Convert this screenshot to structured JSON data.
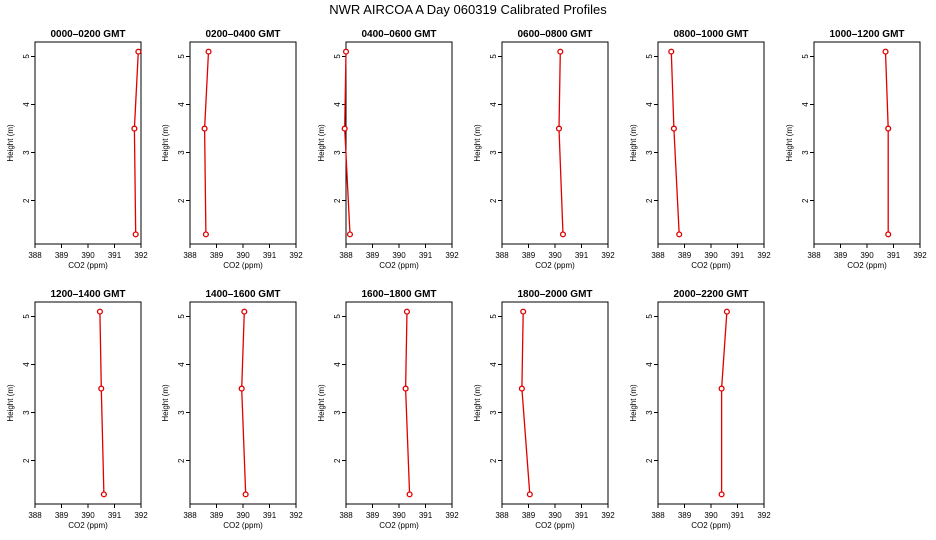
{
  "title": "NWR AIRCOA A  Day 060319  Calibrated Profiles",
  "colors": {
    "line": "#e00000",
    "axis": "#000000"
  },
  "chart_data": [
    {
      "type": "line",
      "title": "0000–0200 GMT",
      "xlabel": "CO2 (ppm)",
      "ylabel": "Height (m)",
      "xlim": [
        388,
        392
      ],
      "ylim": [
        1.1,
        5.3
      ],
      "xticks": [
        "388",
        "389",
        "390",
        "391",
        "392"
      ],
      "yticks": [
        "2",
        "3",
        "4",
        "5"
      ],
      "x": [
        391.8,
        391.75,
        391.9
      ],
      "y": [
        1.3,
        3.5,
        5.1
      ]
    },
    {
      "type": "line",
      "title": "0200–0400 GMT",
      "xlabel": "CO2 (ppm)",
      "ylabel": "Height (m)",
      "xlim": [
        388,
        392
      ],
      "ylim": [
        1.1,
        5.3
      ],
      "xticks": [
        "388",
        "389",
        "390",
        "391",
        "392"
      ],
      "yticks": [
        "2",
        "3",
        "4",
        "5"
      ],
      "x": [
        388.6,
        388.55,
        388.7
      ],
      "y": [
        1.3,
        3.5,
        5.1
      ]
    },
    {
      "type": "line",
      "title": "0400–0600 GMT",
      "xlabel": "CO2 (ppm)",
      "ylabel": "Height (m)",
      "xlim": [
        388,
        392
      ],
      "ylim": [
        1.1,
        5.3
      ],
      "xticks": [
        "388",
        "389",
        "390",
        "391",
        "392"
      ],
      "yticks": [
        "2",
        "3",
        "4",
        "5"
      ],
      "x": [
        388.15,
        387.95,
        388.0
      ],
      "y": [
        1.3,
        3.5,
        5.1
      ]
    },
    {
      "type": "line",
      "title": "0600–0800 GMT",
      "xlabel": "CO2 (ppm)",
      "ylabel": "Height (m)",
      "xlim": [
        388,
        392
      ],
      "ylim": [
        1.1,
        5.3
      ],
      "xticks": [
        "388",
        "389",
        "390",
        "391",
        "392"
      ],
      "yticks": [
        "2",
        "3",
        "4",
        "5"
      ],
      "x": [
        390.3,
        390.15,
        390.2
      ],
      "y": [
        1.3,
        3.5,
        5.1
      ]
    },
    {
      "type": "line",
      "title": "0800–1000 GMT",
      "xlabel": "CO2 (ppm)",
      "ylabel": "Height (m)",
      "xlim": [
        388,
        392
      ],
      "ylim": [
        1.1,
        5.3
      ],
      "xticks": [
        "388",
        "389",
        "390",
        "391",
        "392"
      ],
      "yticks": [
        "2",
        "3",
        "4",
        "5"
      ],
      "x": [
        388.8,
        388.6,
        388.5
      ],
      "y": [
        1.3,
        3.5,
        5.1
      ]
    },
    {
      "type": "line",
      "title": "1000–1200 GMT",
      "xlabel": "CO2 (ppm)",
      "ylabel": "Height (m)",
      "xlim": [
        388,
        392
      ],
      "ylim": [
        1.1,
        5.3
      ],
      "xticks": [
        "388",
        "389",
        "390",
        "391",
        "392"
      ],
      "yticks": [
        "2",
        "3",
        "4",
        "5"
      ],
      "x": [
        390.8,
        390.8,
        390.7
      ],
      "y": [
        1.3,
        3.5,
        5.1
      ]
    },
    {
      "type": "line",
      "title": "1200–1400 GMT",
      "xlabel": "CO2 (ppm)",
      "ylabel": "Height (m)",
      "xlim": [
        388,
        392
      ],
      "ylim": [
        1.1,
        5.3
      ],
      "xticks": [
        "388",
        "389",
        "390",
        "391",
        "392"
      ],
      "yticks": [
        "2",
        "3",
        "4",
        "5"
      ],
      "x": [
        390.6,
        390.5,
        390.45
      ],
      "y": [
        1.3,
        3.5,
        5.1
      ]
    },
    {
      "type": "line",
      "title": "1400–1600 GMT",
      "xlabel": "CO2 (ppm)",
      "ylabel": "Height (m)",
      "xlim": [
        388,
        392
      ],
      "ylim": [
        1.1,
        5.3
      ],
      "xticks": [
        "388",
        "389",
        "390",
        "391",
        "392"
      ],
      "yticks": [
        "2",
        "3",
        "4",
        "5"
      ],
      "x": [
        390.1,
        389.95,
        390.05
      ],
      "y": [
        1.3,
        3.5,
        5.1
      ]
    },
    {
      "type": "line",
      "title": "1600–1800 GMT",
      "xlabel": "CO2 (ppm)",
      "ylabel": "Height (m)",
      "xlim": [
        388,
        392
      ],
      "ylim": [
        1.1,
        5.3
      ],
      "xticks": [
        "388",
        "389",
        "390",
        "391",
        "392"
      ],
      "yticks": [
        "2",
        "3",
        "4",
        "5"
      ],
      "x": [
        390.4,
        390.25,
        390.3
      ],
      "y": [
        1.3,
        3.5,
        5.1
      ]
    },
    {
      "type": "line",
      "title": "1800–2000 GMT",
      "xlabel": "CO2 (ppm)",
      "ylabel": "Height (m)",
      "xlim": [
        388,
        392
      ],
      "ylim": [
        1.1,
        5.3
      ],
      "xticks": [
        "388",
        "389",
        "390",
        "391",
        "392"
      ],
      "yticks": [
        "2",
        "3",
        "4",
        "5"
      ],
      "x": [
        389.05,
        388.75,
        388.8
      ],
      "y": [
        1.3,
        3.5,
        5.1
      ]
    },
    {
      "type": "line",
      "title": "2000–2200 GMT",
      "xlabel": "CO2 (ppm)",
      "ylabel": "Height (m)",
      "xlim": [
        388,
        392
      ],
      "ylim": [
        1.1,
        5.3
      ],
      "xticks": [
        "388",
        "389",
        "390",
        "391",
        "392"
      ],
      "yticks": [
        "2",
        "3",
        "4",
        "5"
      ],
      "x": [
        390.4,
        390.4,
        390.6
      ],
      "y": [
        1.3,
        3.5,
        5.1
      ]
    }
  ]
}
